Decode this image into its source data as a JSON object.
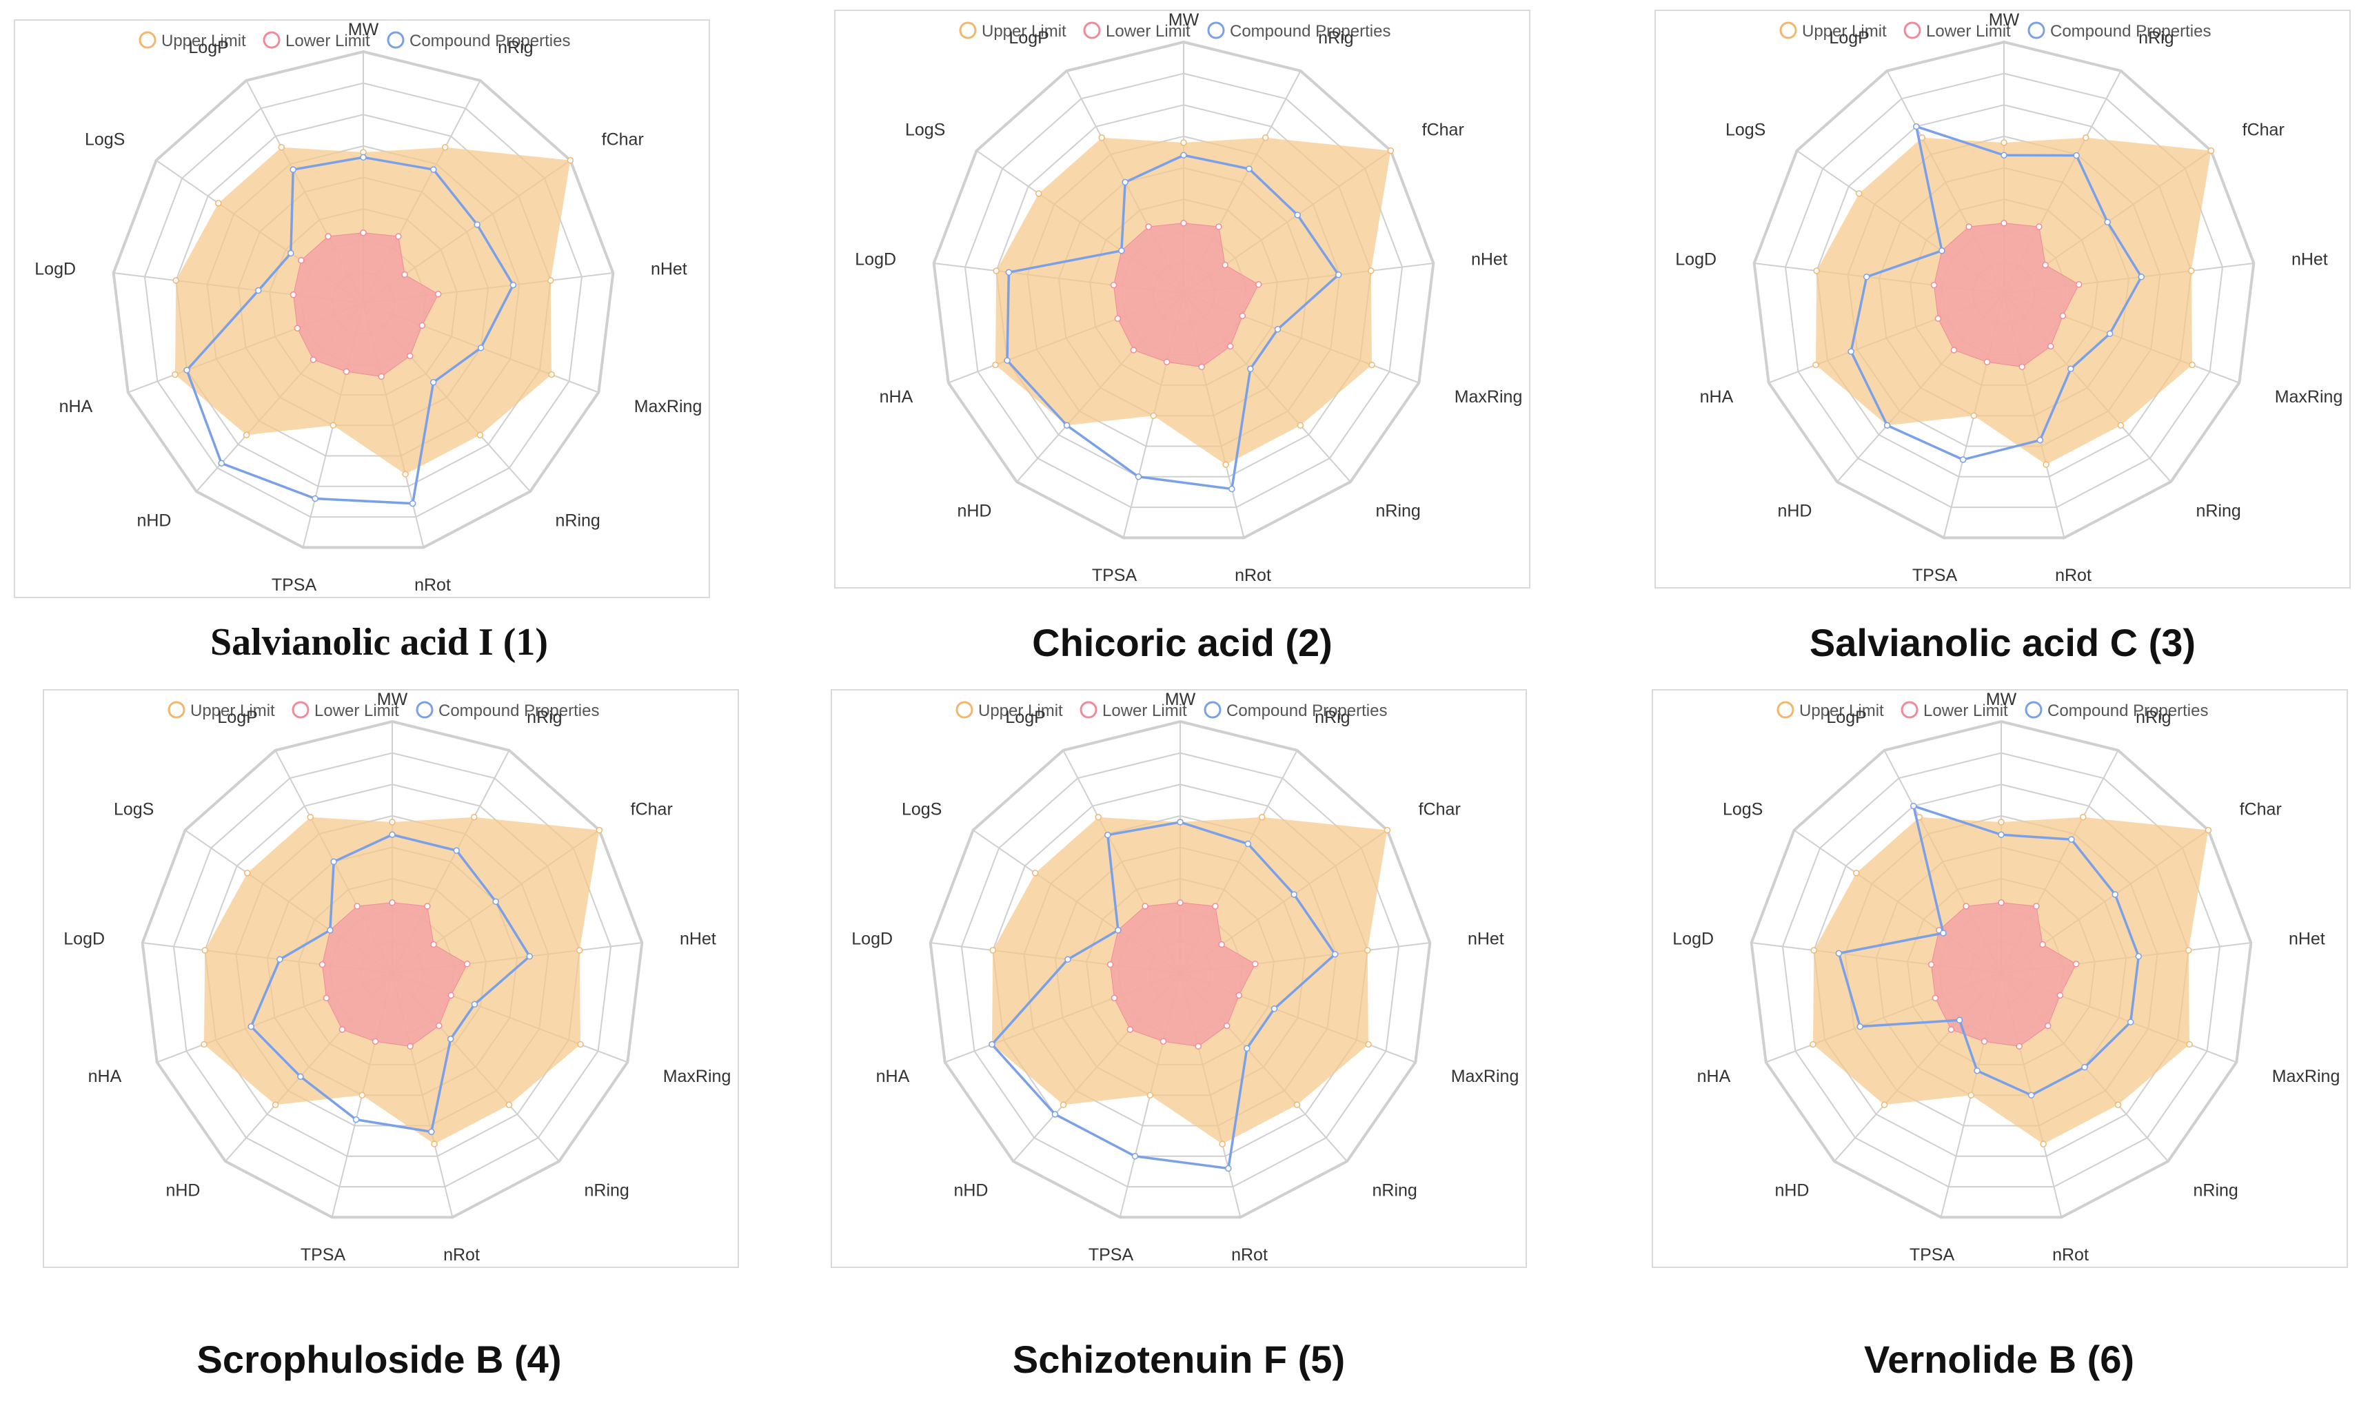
{
  "legend": {
    "upper": "Upper Limit",
    "lower": "Lower Limit",
    "compound": "Compound Properties"
  },
  "axes": [
    "MW",
    "nRig",
    "fChar",
    "nHet",
    "MaxRing",
    "nRing",
    "nRot",
    "TPSA",
    "nHD",
    "nHA",
    "LogD",
    "LogS",
    "LogP"
  ],
  "colors": {
    "upper_line": "#f2b66d",
    "upper_fill": "#f5c98a",
    "lower_line": "#f08a98",
    "lower_fill": "#f4a4a4",
    "compound_line": "#7aa0e8",
    "grid": "#cfcfcf",
    "axis_label": "#333333"
  },
  "captions": [
    "Salvianolic acid I (1)",
    "Chicoric acid (2)",
    "Salvianolic acid C  (3)",
    "Scrophuloside B  (4)",
    "Schizotenuin F  (5)",
    "Vernolide B  (6)"
  ],
  "chart_data": [
    {
      "type": "radar",
      "title": "Salvianolic acid I (1)",
      "axes": [
        "MW",
        "nRig",
        "fChar",
        "nHet",
        "MaxRing",
        "nRing",
        "nRot",
        "TPSA",
        "nHD",
        "nHA",
        "LogD",
        "LogS",
        "LogP"
      ],
      "range": [
        0,
        1
      ],
      "series": [
        {
          "name": "Upper Limit",
          "values": [
            0.6,
            0.7,
            1.0,
            0.75,
            0.8,
            0.7,
            0.7,
            0.5,
            0.7,
            0.8,
            0.75,
            0.7,
            0.7
          ]
        },
        {
          "name": "Lower Limit",
          "values": [
            0.28,
            0.3,
            0.2,
            0.3,
            0.25,
            0.28,
            0.3,
            0.28,
            0.3,
            0.28,
            0.28,
            0.3,
            0.3
          ]
        },
        {
          "name": "Compound Properties",
          "values": [
            0.58,
            0.6,
            0.55,
            0.6,
            0.5,
            0.42,
            0.82,
            0.8,
            0.85,
            0.75,
            0.42,
            0.35,
            0.6
          ]
        }
      ]
    },
    {
      "type": "radar",
      "title": "Chicoric acid (2)",
      "axes": [
        "MW",
        "nRig",
        "fChar",
        "nHet",
        "MaxRing",
        "nRing",
        "nRot",
        "TPSA",
        "nHD",
        "nHA",
        "LogD",
        "LogS",
        "LogP"
      ],
      "range": [
        0,
        1
      ],
      "series": [
        {
          "name": "Upper Limit",
          "values": [
            0.6,
            0.7,
            1.0,
            0.75,
            0.8,
            0.7,
            0.7,
            0.5,
            0.7,
            0.8,
            0.75,
            0.7,
            0.7
          ]
        },
        {
          "name": "Lower Limit",
          "values": [
            0.28,
            0.3,
            0.2,
            0.3,
            0.25,
            0.28,
            0.3,
            0.28,
            0.3,
            0.28,
            0.28,
            0.3,
            0.3
          ]
        },
        {
          "name": "Compound Properties",
          "values": [
            0.55,
            0.56,
            0.55,
            0.62,
            0.4,
            0.4,
            0.8,
            0.75,
            0.7,
            0.75,
            0.7,
            0.3,
            0.5
          ]
        }
      ]
    },
    {
      "type": "radar",
      "title": "Salvianolic acid C  (3)",
      "axes": [
        "MW",
        "nRig",
        "fChar",
        "nHet",
        "MaxRing",
        "nRing",
        "nRot",
        "TPSA",
        "nHD",
        "nHA",
        "LogD",
        "LogS",
        "LogP"
      ],
      "range": [
        0,
        1
      ],
      "series": [
        {
          "name": "Upper Limit",
          "values": [
            0.6,
            0.7,
            1.0,
            0.75,
            0.8,
            0.7,
            0.7,
            0.5,
            0.7,
            0.8,
            0.75,
            0.7,
            0.7
          ]
        },
        {
          "name": "Lower Limit",
          "values": [
            0.28,
            0.3,
            0.2,
            0.3,
            0.25,
            0.28,
            0.3,
            0.28,
            0.3,
            0.28,
            0.28,
            0.3,
            0.3
          ]
        },
        {
          "name": "Compound Properties",
          "values": [
            0.55,
            0.62,
            0.5,
            0.55,
            0.45,
            0.4,
            0.6,
            0.68,
            0.7,
            0.65,
            0.55,
            0.3,
            0.75
          ]
        }
      ]
    },
    {
      "type": "radar",
      "title": "Scrophuloside B  (4)",
      "axes": [
        "MW",
        "nRig",
        "fChar",
        "nHet",
        "MaxRing",
        "nRing",
        "nRot",
        "TPSA",
        "nHD",
        "nHA",
        "LogD",
        "LogS",
        "LogP"
      ],
      "range": [
        0,
        1
      ],
      "series": [
        {
          "name": "Upper Limit",
          "values": [
            0.6,
            0.7,
            1.0,
            0.75,
            0.8,
            0.7,
            0.7,
            0.5,
            0.7,
            0.8,
            0.75,
            0.7,
            0.7
          ]
        },
        {
          "name": "Lower Limit",
          "values": [
            0.28,
            0.3,
            0.2,
            0.3,
            0.25,
            0.28,
            0.3,
            0.28,
            0.3,
            0.28,
            0.28,
            0.3,
            0.3
          ]
        },
        {
          "name": "Compound Properties",
          "values": [
            0.55,
            0.55,
            0.5,
            0.55,
            0.35,
            0.35,
            0.65,
            0.6,
            0.55,
            0.6,
            0.45,
            0.3,
            0.5
          ]
        }
      ]
    },
    {
      "type": "radar",
      "title": "Schizotenuin F  (5)",
      "axes": [
        "MW",
        "nRig",
        "fChar",
        "nHet",
        "MaxRing",
        "nRing",
        "nRot",
        "TPSA",
        "nHD",
        "nHA",
        "LogD",
        "LogS",
        "LogP"
      ],
      "range": [
        0,
        1
      ],
      "series": [
        {
          "name": "Upper Limit",
          "values": [
            0.6,
            0.7,
            1.0,
            0.75,
            0.8,
            0.7,
            0.7,
            0.5,
            0.7,
            0.8,
            0.75,
            0.7,
            0.7
          ]
        },
        {
          "name": "Lower Limit",
          "values": [
            0.28,
            0.3,
            0.2,
            0.3,
            0.25,
            0.28,
            0.3,
            0.28,
            0.3,
            0.28,
            0.28,
            0.3,
            0.3
          ]
        },
        {
          "name": "Compound Properties",
          "values": [
            0.6,
            0.58,
            0.55,
            0.62,
            0.4,
            0.4,
            0.8,
            0.75,
            0.75,
            0.8,
            0.45,
            0.3,
            0.62
          ]
        }
      ]
    },
    {
      "type": "radar",
      "title": "Vernolide B  (6)",
      "axes": [
        "MW",
        "nRig",
        "fChar",
        "nHet",
        "MaxRing",
        "nRing",
        "nRot",
        "TPSA",
        "nHD",
        "nHA",
        "LogD",
        "LogS",
        "LogP"
      ],
      "range": [
        0,
        1
      ],
      "series": [
        {
          "name": "Upper Limit",
          "values": [
            0.6,
            0.7,
            1.0,
            0.75,
            0.8,
            0.7,
            0.7,
            0.5,
            0.7,
            0.8,
            0.75,
            0.7,
            0.7
          ]
        },
        {
          "name": "Lower Limit",
          "values": [
            0.28,
            0.3,
            0.2,
            0.3,
            0.25,
            0.28,
            0.3,
            0.28,
            0.3,
            0.28,
            0.28,
            0.3,
            0.3
          ]
        },
        {
          "name": "Compound Properties",
          "values": [
            0.55,
            0.6,
            0.55,
            0.55,
            0.55,
            0.5,
            0.5,
            0.4,
            0.25,
            0.6,
            0.65,
            0.28,
            0.75
          ]
        }
      ]
    }
  ]
}
